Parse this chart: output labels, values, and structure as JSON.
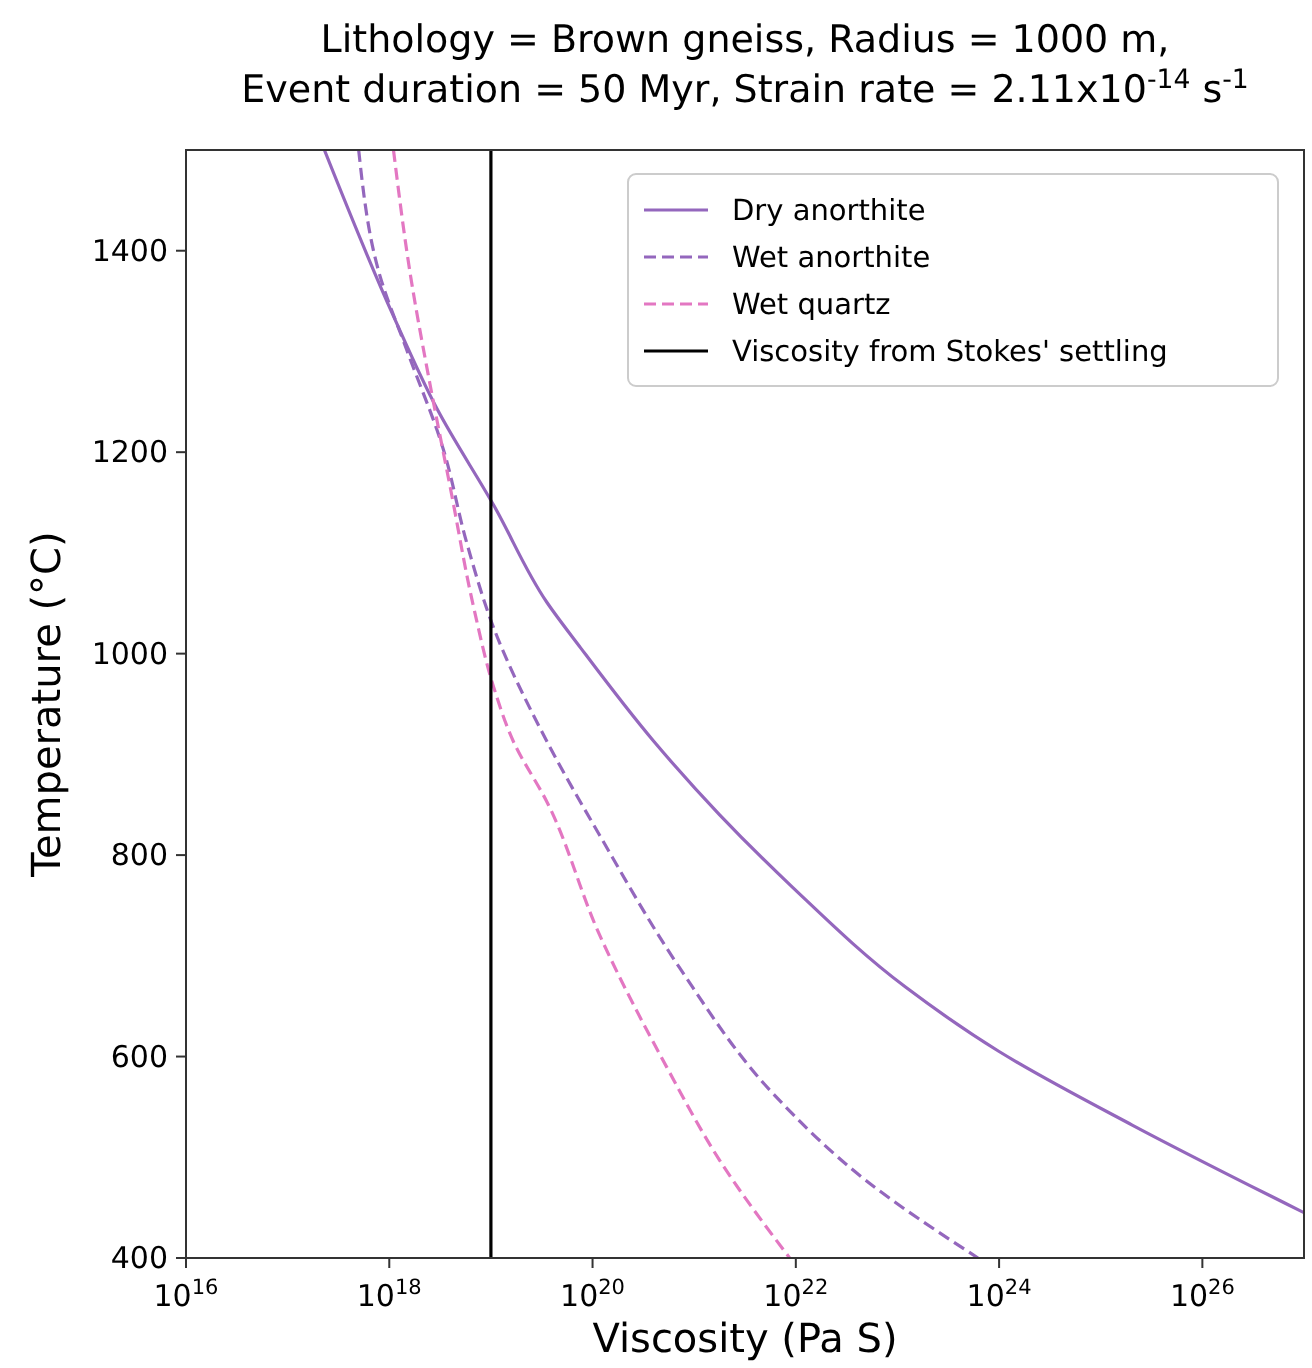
{
  "chart_data": {
    "type": "line",
    "title": "Lithology = Brown gneiss, Radius = 1000 m,\nEvent duration = 50 Myr, Strain rate = 2.11x10$^{-14}$ s$^{-1}$",
    "xlabel": "Viscosity (Pa S)",
    "ylabel": "Temperature (°C)",
    "log": "x",
    "xlim": [
      1e+16,
      1e+27
    ],
    "ylim": [
      400,
      1500
    ],
    "xticks": [
      {
        "value": 1e+16,
        "label": "10$^{16}$"
      },
      {
        "value": 1e+18,
        "label": "10$^{18}$"
      },
      {
        "value": 1e+20,
        "label": "10$^{20}$"
      },
      {
        "value": 1e+22,
        "label": "10$^{22}$"
      },
      {
        "value": 1e+24,
        "label": "10$^{24}$"
      },
      {
        "value": 1e+26,
        "label": "10$^{26}$"
      }
    ],
    "yticks": [
      400,
      600,
      800,
      1000,
      1200,
      1400
    ],
    "grid": false,
    "legend": "top right",
    "series": [
      {
        "name": "Dry anorthite",
        "color": "#9467bd",
        "line_style": "solid",
        "x": [
          2.3e+17,
          1.1e+18,
          2.95e+18,
          1.07e+19,
          3.55e+19,
          7.6e+19,
          4e+20,
          1.78e+21,
          9.3e+21,
          1.2e+23,
          1e+24,
          2.04e+25,
          1e+27
        ],
        "values": [
          1500,
          1335,
          1243,
          1147,
          1051,
          1006,
          913,
          840,
          768,
          669,
          605,
          532,
          445
        ]
      },
      {
        "name": "Wet anorthite",
        "color": "#9467bd",
        "line_style": "dashed",
        "x": [
          5e+17,
          8.1e+17,
          1.48e+18,
          3.4e+18,
          5.75e+18,
          1.07e+19,
          3.55e+19,
          1.17e+20,
          7.2e+20,
          6e+21,
          4.9e+22,
          6.2e+23
        ],
        "values": [
          1500,
          1375,
          1302,
          1203,
          1111,
          1025,
          913,
          820,
          688,
          563,
          477,
          400
        ]
      },
      {
        "name": "Wet quartz",
        "color": "#e377c2",
        "line_style": "dashed",
        "x": [
          1.1e+18,
          1.62e+18,
          2.5e+18,
          4e+18,
          6.8e+18,
          1.07e+19,
          1.66e+19,
          3.55e+19,
          1.17e+20,
          5.4e+20,
          1.78e+21,
          8.7e+21
        ],
        "values": [
          1500,
          1375,
          1269,
          1164,
          1045,
          966,
          913,
          853,
          721,
          589,
          497,
          400
        ]
      },
      {
        "name": "Viscosity from Stokes' settling",
        "color": "#000000",
        "line_style": "solid",
        "x": [
          1e+19,
          1e+19
        ],
        "values": [
          400,
          1500
        ]
      }
    ]
  }
}
